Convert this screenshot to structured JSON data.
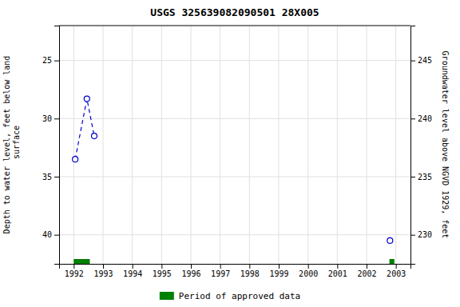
{
  "chart_data": {
    "type": "scatter",
    "title": "USGS 325639082090501 28X005",
    "ylabel": "Depth to water level, feet below land\n surface",
    "y2label": "Groundwater level above NGVD 1929, feet",
    "xlim": [
      1991.5,
      2003.5
    ],
    "ylim": [
      42.5,
      22.0
    ],
    "y2lim": [
      227.5,
      248.0
    ],
    "xticks": [
      1992,
      1993,
      1994,
      1995,
      1996,
      1997,
      1998,
      1999,
      2000,
      2001,
      2002,
      2003
    ],
    "yticks": [
      25,
      30,
      35,
      40
    ],
    "y2ticks": [
      245,
      240,
      235,
      230
    ],
    "grid": true,
    "legend": "bottom",
    "series": [
      {
        "type": "line",
        "line_style": "dashed",
        "color": "#0000cc",
        "x": [
          1992.05,
          1992.45,
          1992.7
        ],
        "values": [
          33.5,
          28.3,
          31.5
        ]
      },
      {
        "type": "scatter",
        "marker": "open-circle",
        "color": "#0000cc",
        "x": [
          1992.05,
          1992.45,
          1992.7,
          2002.8
        ],
        "values": [
          33.5,
          28.3,
          31.5,
          40.5
        ]
      },
      {
        "type": "span",
        "name": "Period of approved data",
        "color": "#008000",
        "start": [
          1992.0,
          2002.78
        ],
        "end": [
          1992.55,
          2002.95
        ]
      }
    ]
  }
}
